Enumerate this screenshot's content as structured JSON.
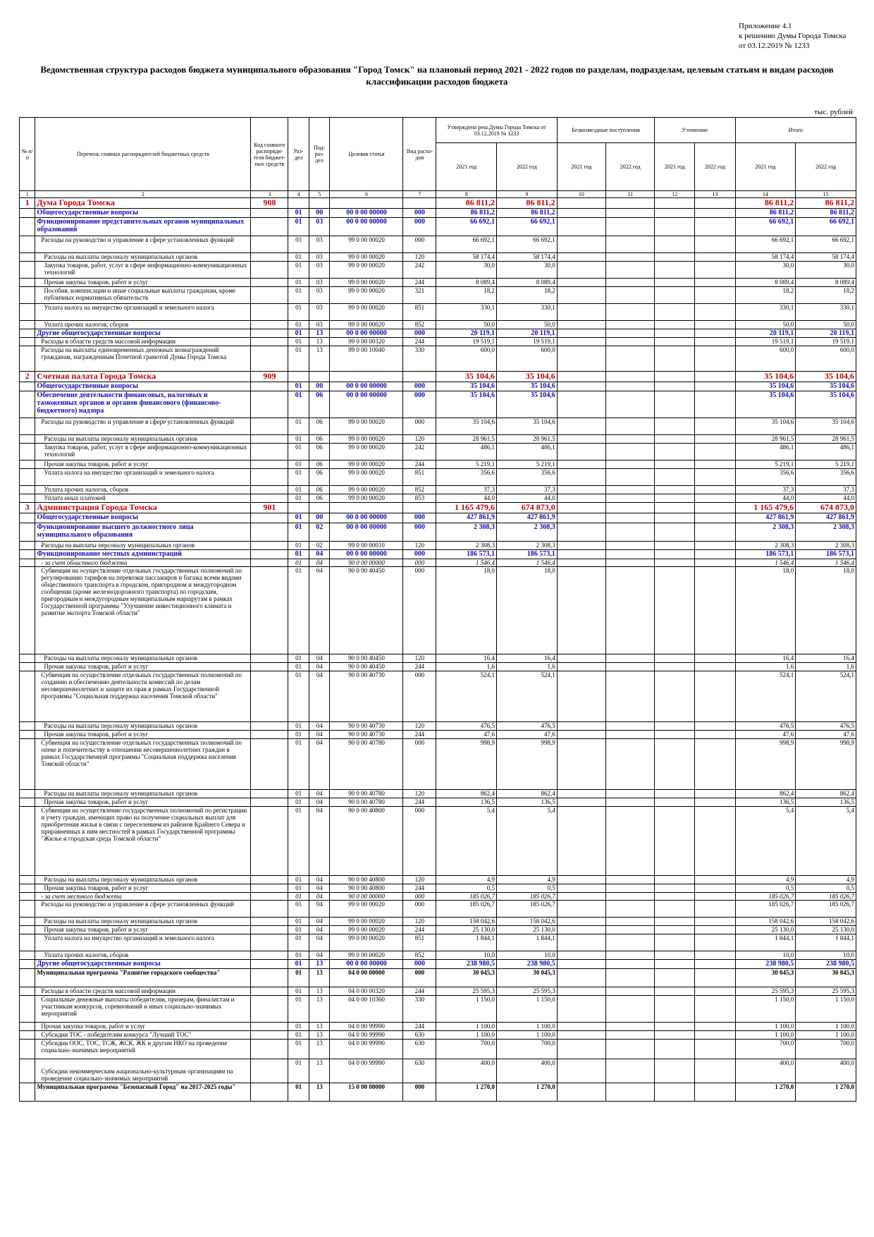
{
  "appendix": [
    "Приложение 4.1",
    "к решению Думы Города Томска",
    "от 03.12.2019 № 1233"
  ],
  "title": "Ведомственная структура расходов бюджета муниципального образования \"Город Томск\" на плановый период 2021 - 2022 годов по разделам, подразделам, целевым статьям и видам расходов классификации расходов бюджета",
  "units": "тыс. рублей",
  "header": {
    "num": "№ п/п",
    "name": "Перечень главных распорядителей бюджетных средств",
    "code": "Код главного распоряди-теля бюджет-ных средств",
    "razdel": "Раз-дел",
    "podrazdel": "Под-раз-дел",
    "target": "Целевая статья",
    "vid": "Вид расхо-дов",
    "approved": "Утверждено реш.Думы Города Томска от 03.12.2019 № 1233",
    "free": "Безвозмездные поступления",
    "clarify": "Уточнение",
    "total": "Итого",
    "y2021": "2021 год",
    "y2022": "2022 год",
    "colnums": [
      "1",
      "2",
      "3",
      "4",
      "5",
      "6",
      "7",
      "8",
      "9",
      "10",
      "11",
      "12",
      "13",
      "14",
      "15"
    ]
  },
  "rows": [
    {
      "lvl": "lvl0",
      "n": "1",
      "name": "Дума Города Томска",
      "code": "908",
      "r": "",
      "p": "",
      "cs": "",
      "vr": "",
      "a1": "86 811,2",
      "a2": "86 811,2",
      "t1": "86 811,2",
      "t2": "86 811,2",
      "h": 15
    },
    {
      "lvl": "lvl1",
      "name": "Общегосударственные вопросы",
      "r": "01",
      "p": "00",
      "cs": "00 0 00 00000",
      "vr": "000",
      "a1": "86 811,2",
      "a2": "86 811,2",
      "t1": "86 811,2",
      "t2": "86 811,2",
      "h": 13
    },
    {
      "lvl": "lvl2",
      "name": "Функционирование представительных органов муниципальных образований",
      "r": "01",
      "p": "03",
      "cs": "00 0 00 00000",
      "vr": "000",
      "a1": "66 692,1",
      "a2": "66 692,1",
      "t1": "66 692,1",
      "t2": "66 692,1",
      "h": 26
    },
    {
      "lvl": "norm",
      "name": "Расходы на руководство и управление в сфере установленных функций",
      "r": "01",
      "p": "03",
      "cs": "99 0 00 00020",
      "vr": "000",
      "a1": "66 692,1",
      "a2": "66 692,1",
      "t1": "66 692,1",
      "t2": "66 692,1",
      "h": 24
    },
    {
      "lvl": "sub",
      "name": "Расходы на выплаты персоналу муниципальных органов",
      "r": "01",
      "p": "03",
      "cs": "99 0 00 00020",
      "vr": "120",
      "a1": "58 174,4",
      "a2": "58 174,4",
      "t1": "58 174,4",
      "t2": "58 174,4",
      "h": 12
    },
    {
      "lvl": "sub",
      "name": "Закупка товаров, работ, услуг в сфере информационно-коммуникационных технологий",
      "r": "01",
      "p": "03",
      "cs": "99 0 00 00020",
      "vr": "242",
      "a1": "30,0",
      "a2": "30,0",
      "t1": "30,0",
      "t2": "30,0",
      "h": 24
    },
    {
      "lvl": "sub",
      "name": "Прочая закупка товаров, работ и услуг",
      "r": "01",
      "p": "03",
      "cs": "99 0 00 00020",
      "vr": "244",
      "a1": "8 089,4",
      "a2": "8 089,4",
      "t1": "8 089,4",
      "t2": "8 089,4",
      "h": 12
    },
    {
      "lvl": "sub",
      "name": "Пособия, компенсации и иные социальные выплаты гражданам, кроме публичных нормативных обязательств",
      "r": "01",
      "p": "03",
      "cs": "99 0 00 00020",
      "vr": "321",
      "a1": "18,2",
      "a2": "18,2",
      "t1": "18,2",
      "t2": "18,2",
      "h": 24
    },
    {
      "lvl": "sub",
      "name": "Уплата налога на имущество организаций и земельного налога",
      "r": "01",
      "p": "03",
      "cs": "99 0 00 00020",
      "vr": "851",
      "a1": "330,1",
      "a2": "330,1",
      "t1": "330,1",
      "t2": "330,1",
      "h": 24
    },
    {
      "lvl": "sub",
      "name": "Уплата прочих налогов, сборов",
      "r": "01",
      "p": "03",
      "cs": "99 0 00 00020",
      "vr": "852",
      "a1": "50,0",
      "a2": "50,0",
      "t1": "50,0",
      "t2": "50,0",
      "h": 12
    },
    {
      "lvl": "lvl2",
      "name": "Другие общегосударственные вопросы",
      "r": "01",
      "p": "13",
      "cs": "00 0 00 00000",
      "vr": "000",
      "a1": "20 119,1",
      "a2": "20 119,1",
      "t1": "20 119,1",
      "t2": "20 119,1",
      "h": 12
    },
    {
      "lvl": "norm",
      "name": "Расходы в области средств массовой информации",
      "r": "01",
      "p": "13",
      "cs": "99 0 00 00320",
      "vr": "244",
      "a1": "19 519,1",
      "a2": "19 519,1",
      "t1": "19 519,1",
      "t2": "19 519,1",
      "h": 12
    },
    {
      "lvl": "norm",
      "name": "Расходы на выплаты единовременных денежных вознаграждений гражданам, награжденным Почетной грамотой Думы Города Томска",
      "r": "01",
      "p": "13",
      "cs": "99 0 00 10040",
      "vr": "330",
      "a1": "600,0",
      "a2": "600,0",
      "t1": "600,0",
      "t2": "600,0",
      "h": 36
    },
    {
      "lvl": "lvl0",
      "n": "2",
      "name": "Счетная палата Города Томска",
      "code": "909",
      "r": "",
      "p": "",
      "cs": "",
      "vr": "",
      "a1": "35 104,6",
      "a2": "35 104,6",
      "t1": "35 104,6",
      "t2": "35 104,6",
      "h": 15
    },
    {
      "lvl": "lvl1",
      "name": "Общегосударственные вопросы",
      "r": "01",
      "p": "00",
      "cs": "00 0 00 00000",
      "vr": "000",
      "a1": "35 104,6",
      "a2": "35 104,6",
      "t1": "35 104,6",
      "t2": "35 104,6",
      "h": 13
    },
    {
      "lvl": "lvl2",
      "name": "Обеспечение деятельности финансовых, налоговых и таможенных органов и органов финансового (финансово-бюджетного) надзора",
      "r": "01",
      "p": "06",
      "cs": "00 0 00 00000",
      "vr": "000",
      "a1": "35 104,6",
      "a2": "35 104,6",
      "t1": "35 104,6",
      "t2": "35 104,6",
      "h": 38
    },
    {
      "lvl": "norm",
      "name": "Расходы на руководство и управление в сфере установленных функций",
      "r": "01",
      "p": "06",
      "cs": "99 0 00 00020",
      "vr": "000",
      "a1": "35 104,6",
      "a2": "35 104,6",
      "t1": "35 104,6",
      "t2": "35 104,6",
      "h": 24
    },
    {
      "lvl": "sub",
      "name": "Расходы на выплаты персоналу муниципальных органов",
      "r": "01",
      "p": "06",
      "cs": "99 0 00 00020",
      "vr": "120",
      "a1": "28 961,5",
      "a2": "28 961,5",
      "t1": "28 961,5",
      "t2": "28 961,5",
      "h": 12
    },
    {
      "lvl": "sub",
      "name": "Закупка товаров, работ, услуг в сфере информационно-коммуникационных технологий",
      "r": "01",
      "p": "06",
      "cs": "99 0 00 00020",
      "vr": "242",
      "a1": "486,1",
      "a2": "486,1",
      "t1": "486,1",
      "t2": "486,1",
      "h": 24
    },
    {
      "lvl": "sub",
      "name": "Прочая закупка товаров, работ и услуг",
      "r": "01",
      "p": "06",
      "cs": "99 0 00 00020",
      "vr": "244",
      "a1": "5 219,1",
      "a2": "5 219,1",
      "t1": "5 219,1",
      "t2": "5 219,1",
      "h": 12
    },
    {
      "lvl": "sub",
      "name": "Уплата налога на имущество организаций и земельного налога",
      "r": "01",
      "p": "06",
      "cs": "99 0 00 00020",
      "vr": "851",
      "a1": "356,6",
      "a2": "356,6",
      "t1": "356,6",
      "t2": "356,6",
      "h": 24
    },
    {
      "lvl": "sub",
      "name": "Уплата прочих налогов, сборов",
      "r": "01",
      "p": "06",
      "cs": "99 0 00 00020",
      "vr": "852",
      "a1": "37,3",
      "a2": "37,3",
      "t1": "37,3",
      "t2": "37,3",
      "h": 12
    },
    {
      "lvl": "sub",
      "name": "Уплата иных платежей",
      "r": "01",
      "p": "06",
      "cs": "99 0 00 00020",
      "vr": "853",
      "a1": "44,0",
      "a2": "44,0",
      "t1": "44,0",
      "t2": "44,0",
      "h": 12
    },
    {
      "lvl": "lvl0",
      "n": "3",
      "name": "Администрация Города Томска",
      "code": "901",
      "r": "",
      "p": "",
      "cs": "",
      "vr": "",
      "a1": "1 165 479,6",
      "a2": "674 873,0",
      "t1": "1 165 479,6",
      "t2": "674 873,0",
      "h": 15
    },
    {
      "lvl": "lvl1",
      "name": "Общегосударственные вопросы",
      "r": "01",
      "p": "00",
      "cs": "00 0 00 00000",
      "vr": "000",
      "a1": "427 861,9",
      "a2": "427 861,9",
      "t1": "427 861,9",
      "t2": "427 861,9",
      "h": 14
    },
    {
      "lvl": "lvl2",
      "name": "Функционирование высшего должностного лица муниципального образования",
      "r": "01",
      "p": "02",
      "cs": "00 0 00 00000",
      "vr": "000",
      "a1": "2 308,3",
      "a2": "2 308,3",
      "t1": "2 308,3",
      "t2": "2 308,3",
      "h": 26
    },
    {
      "lvl": "norm",
      "name": "Расходы на выплаты персоналу муниципальных органов",
      "r": "01",
      "p": "02",
      "cs": "99 0 00 00010",
      "vr": "120",
      "a1": "2 308,3",
      "a2": "2 308,3",
      "t1": "2 308,3",
      "t2": "2 308,3",
      "h": 12
    },
    {
      "lvl": "lvl2",
      "name": "Функционирование местных администраций",
      "r": "01",
      "p": "04",
      "cs": "00 0 00 00000",
      "vr": "000",
      "a1": "186 573,1",
      "a2": "186 573,1",
      "t1": "186 573,1",
      "t2": "186 573,1",
      "h": 13
    },
    {
      "lvl": "norm it",
      "name": "- за счет областного бюджета",
      "r": "01",
      "p": "04",
      "cs": "90 0 00 00000",
      "vr": "000",
      "a1": "1 546,4",
      "a2": "1 546,4",
      "t1": "1 546,4",
      "t2": "1 546,4",
      "h": 11
    },
    {
      "lvl": "norm",
      "name": "Субвенция на осуществление отдельных государственных полномочий по регулированию тарифов на перевозки пассажиров и багажа всеми видами общественного транспорта в городском, пригородном и междугородном сообщении (кроме железнодорожного транспорта) по городским, пригородным и междугородным муниципальным маршрутам в рамках Государственной программы \"Улучшение инвестиционного климата и развитие экспорта Томской области\"",
      "r": "01",
      "p": "04",
      "cs": "90 0 00 40450",
      "vr": "000",
      "a1": "18,0",
      "a2": "18,0",
      "t1": "18,0",
      "t2": "18,0",
      "h": 124
    },
    {
      "lvl": "sub",
      "name": "Расходы на выплаты персоналу муниципальных органов",
      "r": "01",
      "p": "04",
      "cs": "90 0 00 40450",
      "vr": "120",
      "a1": "16,4",
      "a2": "16,4",
      "t1": "16,4",
      "t2": "16,4",
      "h": 12
    },
    {
      "lvl": "sub",
      "name": "Прочая закупка товаров, работ и услуг",
      "r": "01",
      "p": "04",
      "cs": "90 0 00 40450",
      "vr": "244",
      "a1": "1,6",
      "a2": "1,6",
      "t1": "1,6",
      "t2": "1,6",
      "h": 12
    },
    {
      "lvl": "norm",
      "name": "Субвенция на осуществление отдельных государственных полномочий по созданию и обеспечению деятельности комиссий по делам несовершеннолетних и защите их прав в рамках Государственной программы \"Социальная поддержка населения Томской области\"",
      "r": "01",
      "p": "04",
      "cs": "90 0 00 40730",
      "vr": "000",
      "a1": "524,1",
      "a2": "524,1",
      "t1": "524,1",
      "t2": "524,1",
      "h": 72
    },
    {
      "lvl": "sub",
      "name": "Расходы на выплаты персоналу муниципальных органов",
      "r": "01",
      "p": "04",
      "cs": "90 0 00 40730",
      "vr": "120",
      "a1": "476,5",
      "a2": "476,5",
      "t1": "476,5",
      "t2": "476,5",
      "h": 12
    },
    {
      "lvl": "sub",
      "name": "Прочая закупка товаров, работ и услуг",
      "r": "01",
      "p": "04",
      "cs": "90 0 00 40730",
      "vr": "244",
      "a1": "47,6",
      "a2": "47,6",
      "t1": "47,6",
      "t2": "47,6",
      "h": 12
    },
    {
      "lvl": "norm",
      "name": "Субвенция на осуществление отдельных государственных полномочий по опеке и попечительству в отношении несовершеннолетних граждан в рамках Государственной программы \"Социальная поддержка населения Томской области\"",
      "r": "01",
      "p": "04",
      "cs": "90 0 00 40780",
      "vr": "000",
      "a1": "998,9",
      "a2": "998,9",
      "t1": "998,9",
      "t2": "998,9",
      "h": 72
    },
    {
      "lvl": "sub",
      "name": "Расходы на выплаты персоналу муниципальных органов",
      "r": "01",
      "p": "04",
      "cs": "90 0 00 40780",
      "vr": "120",
      "a1": "862,4",
      "a2": "862,4",
      "t1": "862,4",
      "t2": "862,4",
      "h": 12
    },
    {
      "lvl": "sub",
      "name": "Прочая закупка товаров, работ и услуг",
      "r": "01",
      "p": "04",
      "cs": "90 0 00 40780",
      "vr": "244",
      "a1": "136,5",
      "a2": "136,5",
      "t1": "136,5",
      "t2": "136,5",
      "h": 12
    },
    {
      "lvl": "norm",
      "name": "Субвенция на осуществление государственных полномочий по регистрации и учету граждан, имеющих право на получение социальных выплат для приобретения жилья в связи с переселением из районов Крайнего Севера и приравненных к ним местностей в рамках Государственной программы \"Жилье и городская среда Томской области\"",
      "r": "01",
      "p": "04",
      "cs": "90 0 00 40800",
      "vr": "000",
      "a1": "5,4",
      "a2": "5,4",
      "t1": "5,4",
      "t2": "5,4",
      "h": 98
    },
    {
      "lvl": "sub",
      "name": "Расходы на выплаты персоналу муниципальных органов",
      "r": "01",
      "p": "04",
      "cs": "90 0 00 40800",
      "vr": "120",
      "a1": "4,9",
      "a2": "4,9",
      "t1": "4,9",
      "t2": "4,9",
      "h": 12
    },
    {
      "lvl": "sub",
      "name": "Прочая закупка товаров, работ и услуг",
      "r": "01",
      "p": "04",
      "cs": "90 0 00 40800",
      "vr": "244",
      "a1": "0,5",
      "a2": "0,5",
      "t1": "0,5",
      "t2": "0,5",
      "h": 12
    },
    {
      "lvl": "norm it",
      "name": "- за счет местного бюджета",
      "r": "01",
      "p": "04",
      "cs": "90 0 00 00000",
      "vr": "000",
      "a1": "185 026,7",
      "a2": "185 026,7",
      "t1": "185 026,7",
      "t2": "185 026,7",
      "h": 11
    },
    {
      "lvl": "norm",
      "name": "Расходы на руководство и управление в сфере установленных функций",
      "r": "01",
      "p": "04",
      "cs": "99 0 00 00020",
      "vr": "000",
      "a1": "185 026,7",
      "a2": "185 026,7",
      "t1": "185 026,7",
      "t2": "185 026,7",
      "h": 24
    },
    {
      "lvl": "sub",
      "name": "Расходы на выплаты персоналу муниципальных органов",
      "r": "01",
      "p": "04",
      "cs": "99 0 00 00020",
      "vr": "120",
      "a1": "158 042,6",
      "a2": "158 042,6",
      "t1": "158 042,6",
      "t2": "158 042,6",
      "h": 12
    },
    {
      "lvl": "sub",
      "name": "Прочая закупка товаров, работ и услуг",
      "r": "01",
      "p": "04",
      "cs": "99 0 00 00020",
      "vr": "244",
      "a1": "25 130,0",
      "a2": "25 130,0",
      "t1": "25 130,0",
      "t2": "25 130,0",
      "h": 12
    },
    {
      "lvl": "sub",
      "name": "Уплата налога на имущество организаций и земельного налога",
      "r": "01",
      "p": "04",
      "cs": "99 0 00 00020",
      "vr": "851",
      "a1": "1 844,1",
      "a2": "1 844,1",
      "t1": "1 844,1",
      "t2": "1 844,1",
      "h": 24
    },
    {
      "lvl": "sub",
      "name": "Уплата прочих налогов, сборов",
      "r": "01",
      "p": "04",
      "cs": "99 0 00 00020",
      "vr": "852",
      "a1": "10,0",
      "a2": "10,0",
      "t1": "10,0",
      "t2": "10,0",
      "h": 12
    },
    {
      "lvl": "lvl2",
      "name": "Другие общегосударственные вопросы",
      "r": "01",
      "p": "13",
      "cs": "00 0 00 00000",
      "vr": "000",
      "a1": "238 980,5",
      "a2": "238 980,5",
      "t1": "238 980,5",
      "t2": "238 980,5",
      "h": 13
    },
    {
      "lvl": "lvl3",
      "name": "Муниципальная программа \"Развитие городского сообщества\"",
      "r": "01",
      "p": "13",
      "cs": "04 0 00 00000",
      "vr": "000",
      "a1": "30 045,3",
      "a2": "30 045,3",
      "t1": "30 045,3",
      "t2": "30 045,3",
      "h": 26
    },
    {
      "lvl": "norm",
      "name": "Расходы в области средств массовой информации",
      "r": "01",
      "p": "13",
      "cs": "04 0 00 00320",
      "vr": "244",
      "a1": "25 595,3",
      "a2": "25 595,3",
      "t1": "25 595,3",
      "t2": "25 595,3",
      "h": 12
    },
    {
      "lvl": "norm",
      "name": "Социальные денежные выплаты победителям, призерам, финалистам и участникам конкурсов, соревнований и иных социально-значимых мероприятий",
      "r": "01",
      "p": "13",
      "cs": "04 0 00 10360",
      "vr": "330",
      "a1": "1 150,0",
      "a2": "1 150,0",
      "t1": "1 150,0",
      "t2": "1 150,0",
      "h": 38
    },
    {
      "lvl": "norm",
      "name": "Прочая закупка товаров, работ и услуг",
      "r": "01",
      "p": "13",
      "cs": "04 0 00 99990",
      "vr": "244",
      "a1": "1 100,0",
      "a2": "1 100,0",
      "t1": "1 100,0",
      "t2": "1 100,0",
      "h": 12
    },
    {
      "lvl": "norm",
      "name": "Субсидии ТОС - победителям конкурса \"Лучший ТОС\"",
      "r": "01",
      "p": "13",
      "cs": "04 0 00 99990",
      "vr": "630",
      "a1": "1 100,0",
      "a2": "1 100,0",
      "t1": "1 100,0",
      "t2": "1 100,0",
      "h": 12
    },
    {
      "lvl": "norm",
      "name": "Субсидии ООС, ТОС, ТСЖ, ЖСК, ЖК и другим НКО на проведение социально-значимых мероприятий",
      "r": "01",
      "p": "13",
      "cs": "04 0 00 99990",
      "vr": "630",
      "a1": "700,0",
      "a2": "700,0",
      "t1": "700,0",
      "t2": "700,0",
      "h": 28
    },
    {
      "lvl": "norm",
      "name": "Субсидии некоммерческим национально-культурным организациям на проведение социально-значимых мероприятий",
      "r": "01",
      "p": "13",
      "cs": "04 0 00 99990",
      "vr": "630",
      "a1": "400,0",
      "a2": "400,0",
      "t1": "400,0",
      "t2": "400,0",
      "h": 34,
      "pad": true
    },
    {
      "lvl": "lvl3",
      "name": "Муниципальная программа \"Безопасный Город\" на 2017-2025 годы\"",
      "r": "01",
      "p": "13",
      "cs": "15 0 00 00000",
      "vr": "000",
      "a1": "1 270,0",
      "a2": "1 270,0",
      "t1": "1 270,0",
      "t2": "1 270,0",
      "h": 26
    }
  ]
}
